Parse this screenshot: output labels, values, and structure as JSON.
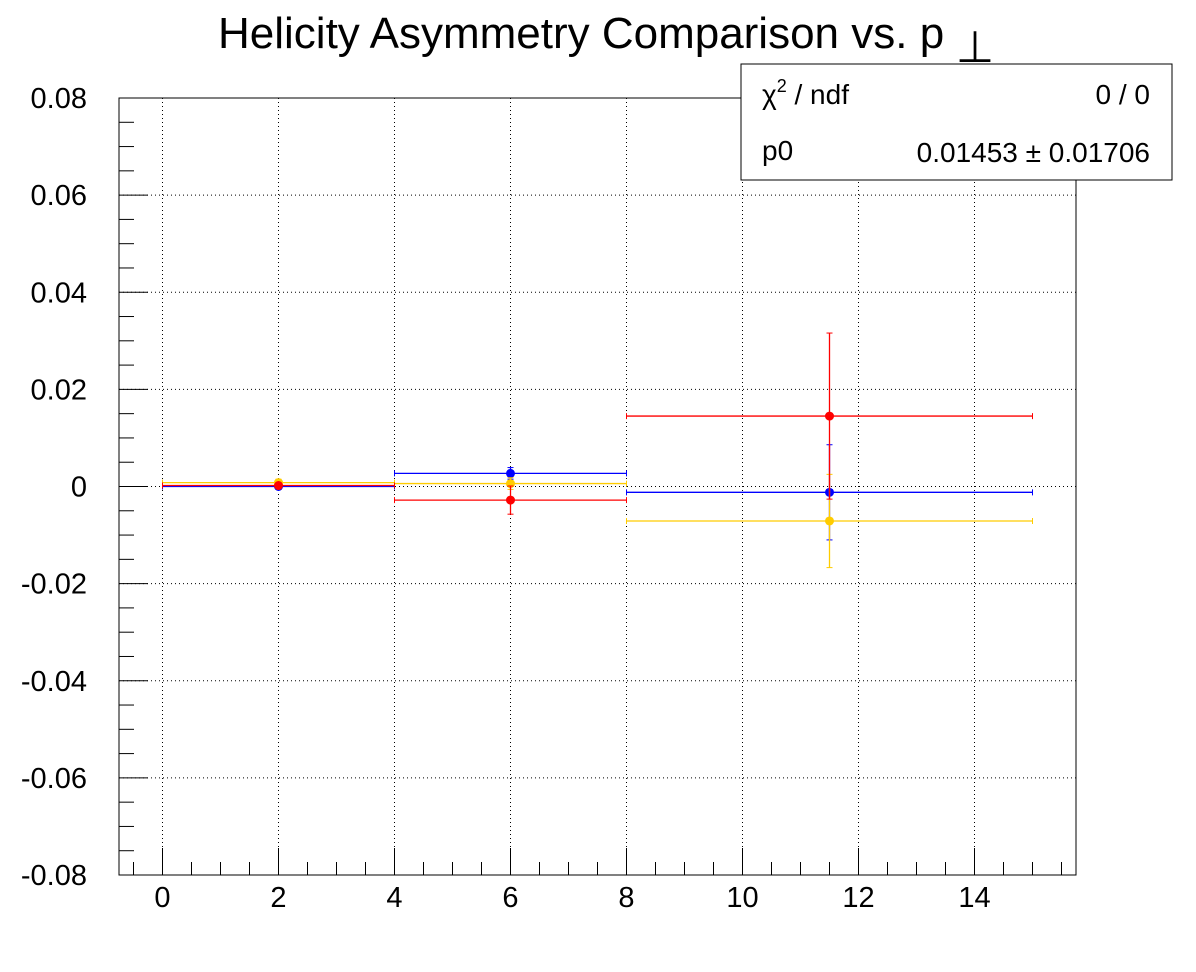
{
  "chart_data": {
    "type": "scatter",
    "title": "Helicity Asymmetry Comparison vs. p",
    "title_symbol": "⊥",
    "xlabel": "",
    "ylabel": "",
    "xlim": [
      -0.75,
      15.75
    ],
    "ylim": [
      -0.08,
      0.08
    ],
    "grid": true,
    "x_major_ticks": [
      0,
      2,
      4,
      6,
      8,
      10,
      12,
      14
    ],
    "x_tick_labels": [
      "0",
      "2",
      "4",
      "6",
      "8",
      "10",
      "12",
      "14"
    ],
    "y_major_ticks": [
      0.08,
      0.06,
      0.04,
      0.02,
      0,
      -0.02,
      -0.04,
      -0.06,
      -0.08
    ],
    "y_tick_labels": [
      "0.08",
      "0.06",
      "0.04",
      "0.02",
      "0",
      "-0.02",
      "-0.04",
      "-0.06",
      "-0.08"
    ],
    "series": [
      {
        "color": "#0000ff",
        "points": [
          {
            "x": 2,
            "xlow": 0,
            "xhigh": 4,
            "y": 0.0,
            "yerr": 0.0006
          },
          {
            "x": 6,
            "xlow": 4,
            "xhigh": 8,
            "y": 0.0027,
            "yerr": 0.0012
          },
          {
            "x": 11.5,
            "xlow": 8,
            "xhigh": 15,
            "y": -0.0012,
            "yerr": 0.0098
          }
        ]
      },
      {
        "color": "#ffcc00",
        "points": [
          {
            "x": 2,
            "xlow": 0,
            "xhigh": 4,
            "y": 0.0008,
            "yerr": 0.0007
          },
          {
            "x": 6,
            "xlow": 4,
            "xhigh": 8,
            "y": 0.0006,
            "yerr": 0.0012
          },
          {
            "x": 11.5,
            "xlow": 8,
            "xhigh": 15,
            "y": -0.0071,
            "yerr": 0.0096
          }
        ]
      },
      {
        "color": "#ff0000",
        "points": [
          {
            "x": 2,
            "xlow": 0,
            "xhigh": 4,
            "y": 0.0002,
            "yerr": 0.0006
          },
          {
            "x": 6,
            "xlow": 4,
            "xhigh": 8,
            "y": -0.0028,
            "yerr": 0.0029
          },
          {
            "x": 11.5,
            "xlow": 8,
            "xhigh": 15,
            "y": 0.0145,
            "yerr": 0.0171
          }
        ]
      }
    ],
    "stats_box": {
      "chi2_label": "χ",
      "chi2_sup": "2",
      "chi2_rest": " / ndf",
      "chi2_value": "0 / 0",
      "p0_label": "p0",
      "p0_value": "0.01453 ± 0.01706"
    }
  }
}
